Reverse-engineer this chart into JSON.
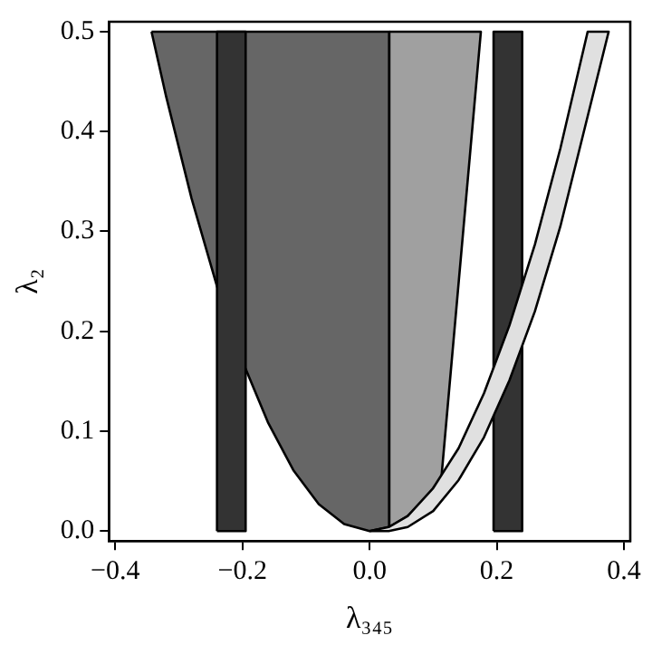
{
  "chart_data": {
    "type": "area",
    "xlabel": "λ₃₄₅",
    "ylabel": "λ₂",
    "xlim": [
      -0.41,
      0.41
    ],
    "ylim": [
      -0.01,
      0.51
    ],
    "xticks": [
      {
        "value": -0.4,
        "label": "−0.4"
      },
      {
        "value": -0.2,
        "label": "−0.2"
      },
      {
        "value": 0,
        "label": "0.0"
      },
      {
        "value": 0.2,
        "label": "0.2"
      },
      {
        "value": 0.4,
        "label": "0.4"
      }
    ],
    "yticks": [
      {
        "value": 0,
        "label": "0.0"
      },
      {
        "value": 0.1,
        "label": "0.1"
      },
      {
        "value": 0.2,
        "label": "0.2"
      },
      {
        "value": 0.3,
        "label": "0.3"
      },
      {
        "value": 0.4,
        "label": "0.4"
      },
      {
        "value": 0.5,
        "label": "0.5"
      }
    ],
    "grid": false,
    "legend": false,
    "series": [
      {
        "color": "#666666",
        "x": [
          -0.343,
          0.031,
          0.031,
          0,
          -0.04,
          -0.08,
          -0.12,
          -0.16,
          -0.2,
          -0.24,
          -0.28,
          -0.32
        ],
        "values": [
          0.5,
          0.5,
          0.004,
          0,
          0.007,
          0.027,
          0.061,
          0.109,
          0.17,
          0.245,
          0.333,
          0.435
        ]
      },
      {
        "color": "#a0a0a0",
        "x": [
          0.031,
          0.175,
          0.113,
          0.09,
          0.06,
          0.031
        ],
        "values": [
          0.5,
          0.5,
          0.054,
          0.034,
          0.015,
          0.004
        ]
      },
      {
        "color": "#333333",
        "x": [
          -0.24,
          -0.24,
          -0.195,
          -0.195
        ],
        "values": [
          0,
          0.5,
          0.5,
          0
        ]
      },
      {
        "color": "#333333",
        "x": [
          0.195,
          0.195,
          0.24,
          0.24
        ],
        "values": [
          0,
          0.5,
          0.5,
          0
        ]
      },
      {
        "color": "#e0e0e0",
        "x": [
          0,
          0.03,
          0.06,
          0.1,
          0.14,
          0.18,
          0.22,
          0.26,
          0.3,
          0.343,
          0.376,
          0.3,
          0.26,
          0.22,
          0.18,
          0.14,
          0.1,
          0.06,
          0.03
        ],
        "values": [
          0,
          0.004,
          0.015,
          0.043,
          0.083,
          0.138,
          0.206,
          0.287,
          0.383,
          0.5,
          0.5,
          0.305,
          0.22,
          0.151,
          0.094,
          0.051,
          0.02,
          0.004,
          0
        ]
      }
    ]
  }
}
